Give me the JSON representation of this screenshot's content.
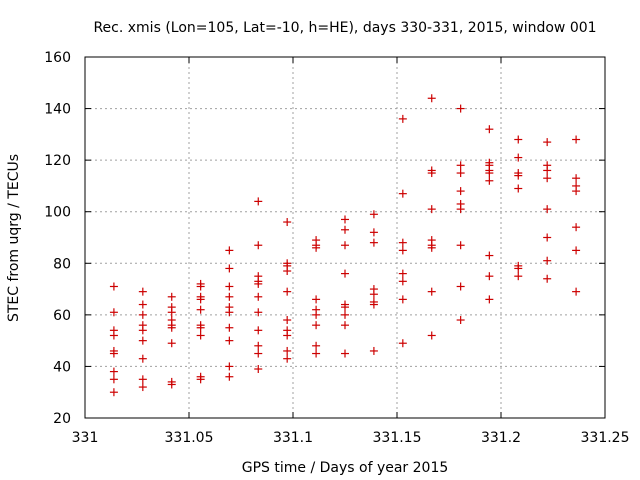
{
  "chart_data": {
    "type": "scatter",
    "title": "Rec. xmis (Lon=105, Lat=-10, h=HE), days 330-331, 2015, window 001",
    "xlabel": "GPS time / Days of year 2015",
    "ylabel": "STEC from uqrg / TECUs",
    "xlim": [
      331,
      331.25
    ],
    "ylim": [
      20,
      160
    ],
    "grid": true,
    "xticks": [
      331,
      331.05,
      331.1,
      331.15,
      331.2,
      331.25
    ],
    "xtick_labels": [
      "331",
      "331.05",
      "331.1",
      "331.15",
      "331.2",
      "331.25"
    ],
    "yticks": [
      20,
      40,
      60,
      80,
      100,
      120,
      140,
      160
    ],
    "ytick_labels": [
      "20",
      "40",
      "60",
      "80",
      "100",
      "120",
      "140",
      "160"
    ],
    "marker": "+",
    "color": "#cc0000",
    "series": [
      {
        "x": 331.0139,
        "y": [
          71,
          61,
          54,
          52,
          46,
          45,
          38,
          35,
          30
        ]
      },
      {
        "x": 331.0278,
        "y": [
          69,
          64,
          60,
          56,
          54,
          50,
          43,
          35,
          32
        ]
      },
      {
        "x": 331.0417,
        "y": [
          67,
          63,
          61,
          58,
          56,
          55,
          49,
          34,
          33
        ]
      },
      {
        "x": 331.0556,
        "y": [
          72,
          71,
          67,
          66,
          62,
          56,
          55,
          52,
          36,
          35
        ]
      },
      {
        "x": 331.0694,
        "y": [
          85,
          78,
          71,
          67,
          63,
          61,
          55,
          50,
          40,
          36
        ]
      },
      {
        "x": 331.0833,
        "y": [
          104,
          87,
          75,
          73,
          72,
          67,
          61,
          54,
          48,
          45,
          39
        ]
      },
      {
        "x": 331.0972,
        "y": [
          96,
          80,
          79,
          77,
          69,
          58,
          54,
          52,
          46,
          43
        ]
      },
      {
        "x": 331.1111,
        "y": [
          89,
          87,
          86,
          66,
          62,
          60,
          56,
          48,
          45
        ]
      },
      {
        "x": 331.125,
        "y": [
          97,
          93,
          87,
          76,
          64,
          63,
          60,
          56,
          45
        ]
      },
      {
        "x": 331.1389,
        "y": [
          99,
          92,
          88,
          70,
          68,
          65,
          64,
          46
        ]
      },
      {
        "x": 331.1528,
        "y": [
          136,
          107,
          88,
          85,
          76,
          73,
          66,
          49
        ]
      },
      {
        "x": 331.1667,
        "y": [
          144,
          116,
          115,
          101,
          89,
          87,
          86,
          69,
          52
        ]
      },
      {
        "x": 331.1806,
        "y": [
          140,
          118,
          115,
          108,
          103,
          101,
          87,
          71,
          58
        ]
      },
      {
        "x": 331.1944,
        "y": [
          132,
          119,
          118,
          116,
          115,
          112,
          83,
          75,
          66
        ]
      },
      {
        "x": 331.2083,
        "y": [
          128,
          121,
          115,
          114,
          109,
          79,
          78,
          75
        ]
      },
      {
        "x": 331.2222,
        "y": [
          127,
          118,
          116,
          113,
          101,
          90,
          81,
          74
        ]
      },
      {
        "x": 331.2361,
        "y": [
          128,
          113,
          110,
          108,
          94,
          85,
          69
        ]
      }
    ]
  }
}
